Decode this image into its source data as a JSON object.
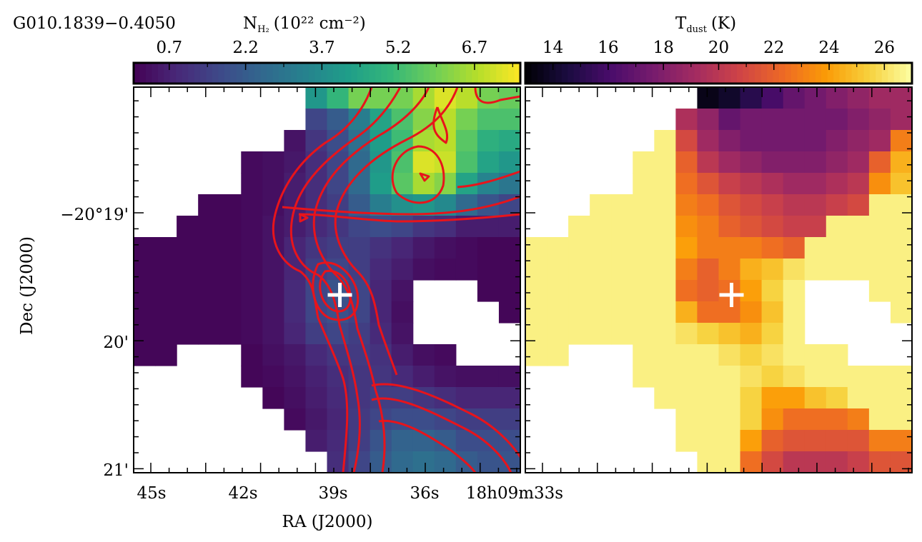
{
  "figure": {
    "source_name": "G010.1839−0.4050",
    "marker": "+"
  },
  "chart_data": [
    {
      "type": "heatmap",
      "panel": "left",
      "colorbar": {
        "label_main": "N",
        "label_sub": "H₂",
        "label_units": "(10²² cm⁻²)",
        "ticks": [
          "0.7",
          "2.2",
          "3.7",
          "5.2",
          "6.7"
        ],
        "range": [
          0.0,
          7.6
        ],
        "colormap": "viridis"
      },
      "xlabel": "RA (J2000)",
      "ylabel": "Dec (J2000)",
      "x_ticks": [
        "45s",
        "42s",
        "39s",
        "36s",
        "18h09m33s"
      ],
      "y_ticks": [
        "−20°19'",
        "20'",
        "21'"
      ],
      "contour_color": "#e8141b",
      "rows": [
        "  . . . . . . . . 4.0 5.0 6.0 6.0 6.0 6.6 7.2 6.8 6.0 5.8",
        "  . . . . . . . . 1.6 2.2 3.2 4.4 5.4 6.2 6.8 6.0 5.4 5.4",
        "  . . . . . . . 0.4 1.2 1.8 2.8 4.2 5.2 6.6 6.8 5.6 4.8 4.6",
        "  . . . . . 0.2 0.3 0.5 1.0 1.6 2.6 4.0 5.4 7.2 7.0 5.4 4.4 4.0",
        "  . . . . . 0.2 0.3 0.6 1.0 1.6 2.6 4.2 5.6 6.6 6.2 4.4 3.4 3.0",
        "  . . . 0.1 0.1 0.2 0.3 0.6 1.0 1.4 2.2 3.2 3.8 4.0 3.6 2.6 2.0 1.6",
        "  . . 0.1 0.1 0.1 0.2 0.4 0.6 0.9 1.2 1.6 1.8 1.6 1.2 1.0 0.6 0.6 0.6",
        "0.1 0.1 0.1 0.1 0.1 0.2 0.4 0.8 1.2 1.4 1.4 1.1 0.8 0.5 0.3 0.2 0.1 0.1",
        "0.1 0.1 0.1 0.1 0.1 0.2 0.4 0.8 1.4 1.6 1.4 0.9 0.6 0.3 0.2 0.2 0.1 0.1",
        "0.1 0.1 0.1 0.1 0.1 0.2 0.4 0.9 1.6 2.0 1.6 0.8 0.4 . . . 0.1 0.1",
        "0.1 0.1 0.1 0.1 0.1 0.2 0.4 0.9 1.6 1.9 1.6 0.8 0.3 . . . . 0.1",
        "0.1 0.1 0.1 0.1 0.1 0.2 0.4 0.8 1.4 1.6 1.4 0.9 0.4 . . . . .",
        "0.1 0.1 . . . 0.1 0.3 0.5 0.9 1.2 1.3 1.1 0.6 0.3 0.2 . . .",
        "  . . . . . 0.1 0.2 0.4 0.7 1.0 1.2 1.2 0.9 0.6 0.4 0.3 0.3 0.3",
        "  . . . . . . 0.1 0.3 0.6 0.9 1.2 1.4 1.4 1.2 1.0 0.8 0.8 0.8",
        "  . . . . . . . 0.2 0.5 0.8 1.3 1.6 1.8 1.8 1.6 1.4 1.4 1.4",
        "  . . . . . . . . 0.6 0.9 1.4 2.0 2.4 2.4 2.2 1.8 1.8 1.8",
        "  . . . . . . . . . 1.0 1.6 2.2 2.6 2.8 2.6 2.2 2.0 2.0"
      ]
    },
    {
      "type": "heatmap",
      "panel": "right",
      "colorbar": {
        "label_main": "T",
        "label_sub": "dust",
        "label_units": "(K)",
        "ticks": [
          "14",
          "16",
          "18",
          "20",
          "22",
          "24",
          "26"
        ],
        "range": [
          13.0,
          27.0
        ],
        "colormap": "inferno"
      },
      "rows": [
        "  . . . . . . . . 13.5 14.0 15.0 16.0 17.0 17.5 18.0 18.5 19.0 19.0",
        "  . . . . . . . 19.5 18.5 17.0 17.5 17.5 17.5 17.5 17.5 18.0 18.5 19.0",
        "  . . . . . . 26.5 21.0 19.0 18.0 17.5 17.5 17.5 17.5 18.0 18.5 19.0 23.0",
        "  . . . . . 26.5 26.5 22.0 20.0 19.0 18.5 18.0 18.0 18.0 18.5 19.0 22.0 24.5",
        "  . . . . . 26.5 26.5 22.5 21.5 20.5 20.0 19.5 19.0 19.0 19.5 20.0 23.5 25.0",
        "  . . . 26.5 26.5 26.5 26.5 23.0 22.5 21.5 21.0 20.5 20.0 20.0 20.5 21.0 26.5 26.5",
        "  . . 26.5 26.5 26.5 26.5 26.5 23.5 23.0 22.0 21.5 21.0 20.5 20.5 26.5 26.5 26.5 26.5",
        "26.5 26.5 26.5 26.5 26.5 26.5 26.5 24.0 23.0 23.0 23.0 22.5 22.0 26.5 26.5 26.5 26.5 26.5",
        "26.5 26.5 26.5 26.5 26.5 26.5 26.5 23.0 22.0 23.0 24.5 25.0 26.0 26.5 26.5 26.5 26.5 26.5",
        "26.5 26.5 26.5 26.5 26.5 26.5 26.5 22.5 22.0 22.5 24.0 25.5 26.5 . . . 26.5 26.5",
        "26.5 26.5 26.5 26.5 26.5 26.5 26.5 24.5 22.5 22.5 23.5 25.0 26.5 . . . . 26.5",
        "26.5 26.5 26.5 26.5 26.5 26.5 26.5 26.0 25.5 25.0 24.5 25.5 26.5 . . . . .",
        "26.5 26.5 . . . 26.5 26.5 26.5 26.5 26.0 25.5 26.0 26.5 26.5 26.5 . . .",
        "  . . . . . 26.5 26.5 26.5 26.5 26.5 26.0 25.5 26.0 26.5 26.5 26.5 26.5 26.5",
        "  . . . . . . 26.5 26.5 26.5 26.5 25.5 24.0 24.0 25.0 25.5 26.5 26.5 26.5",
        "  . . . . . . . 26.5 26.5 26.5 25.5 23.5 22.5 22.5 22.5 23.0 26.5 26.5",
        "  . . . . . . . 26.5 26.5 26.5 24.0 22.0 21.5 21.5 21.5 21.5 23.0 23.0",
        "  . . . . . . . . 26.5 26.5 22.5 21.0 20.0 20.0 20.0 20.5 21.5 21.5"
      ]
    }
  ]
}
